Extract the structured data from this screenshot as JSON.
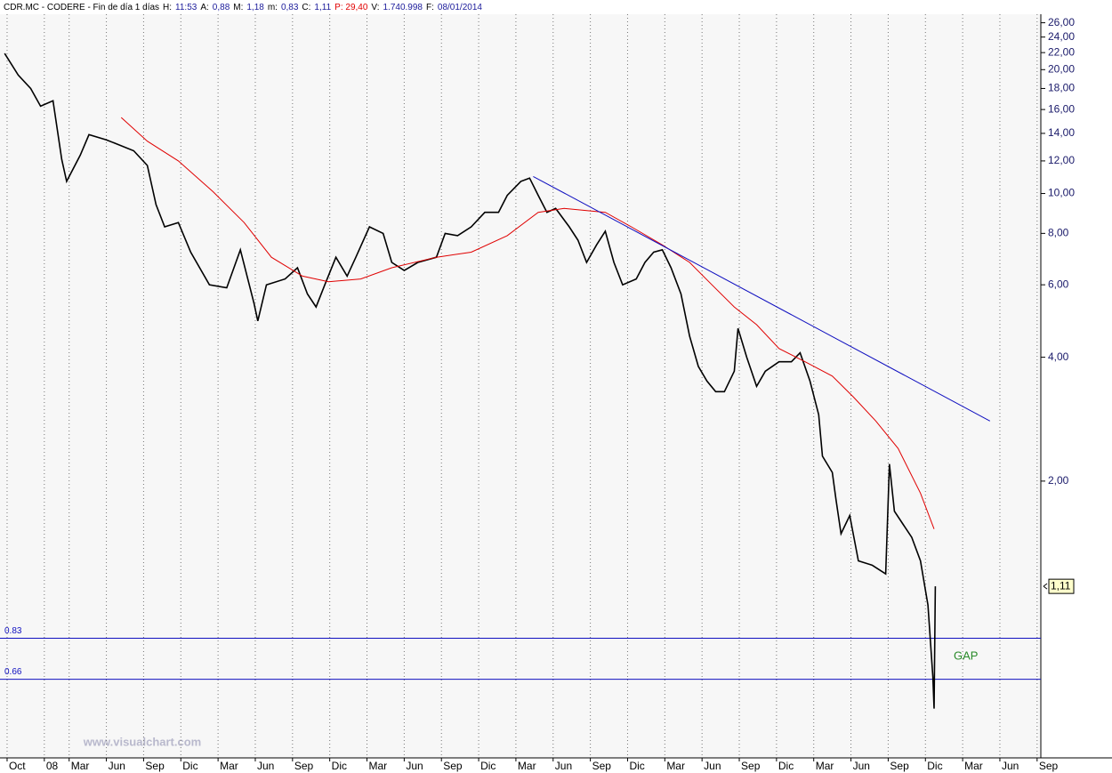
{
  "chart_data": {
    "type": "line",
    "header": [
      {
        "text": "CDR.MC - CODERE - Fin de día 1 días",
        "color": "#000000"
      },
      {
        "text": "H:",
        "color": "#000000"
      },
      {
        "text": "11:53",
        "color": "#1a1a9a"
      },
      {
        "text": "A:",
        "color": "#000000"
      },
      {
        "text": "0,88",
        "color": "#1a1a9a"
      },
      {
        "text": "M:",
        "color": "#000000"
      },
      {
        "text": "1,18",
        "color": "#1a1a9a"
      },
      {
        "text": "m:",
        "color": "#000000"
      },
      {
        "text": "0,83",
        "color": "#1a1a9a"
      },
      {
        "text": "C:",
        "color": "#000000"
      },
      {
        "text": "1,11",
        "color": "#1a1a9a"
      },
      {
        "text": "P: 29,40",
        "color": "#e00000"
      },
      {
        "text": "V:",
        "color": "#000000"
      },
      {
        "text": "1.740.998",
        "color": "#1a1a9a"
      },
      {
        "text": "F:",
        "color": "#000000"
      },
      {
        "text": "08/01/2014",
        "color": "#1a1a9a"
      }
    ],
    "log_scale": true,
    "xlim": [
      -0.5,
      83.3
    ],
    "ylim": [
      0.425,
      27
    ],
    "xticks": [
      {
        "value": 0,
        "label": "Oct"
      },
      {
        "value": 3,
        "label": "08"
      },
      {
        "value": 5,
        "label": "Mar"
      },
      {
        "value": 8,
        "label": "Jun"
      },
      {
        "value": 11,
        "label": "Sep"
      },
      {
        "value": 14,
        "label": "Dic"
      },
      {
        "value": 17,
        "label": "Mar"
      },
      {
        "value": 20,
        "label": "Jun"
      },
      {
        "value": 23,
        "label": "Sep"
      },
      {
        "value": 26,
        "label": "Dic"
      },
      {
        "value": 29,
        "label": "Mar"
      },
      {
        "value": 32,
        "label": "Jun"
      },
      {
        "value": 35,
        "label": "Sep"
      },
      {
        "value": 38,
        "label": "Dic"
      },
      {
        "value": 41,
        "label": "Mar"
      },
      {
        "value": 44,
        "label": "Jun"
      },
      {
        "value": 47,
        "label": "Sep"
      },
      {
        "value": 50,
        "label": "Dic"
      },
      {
        "value": 53,
        "label": "Mar"
      },
      {
        "value": 56,
        "label": "Jun"
      },
      {
        "value": 59,
        "label": "Sep"
      },
      {
        "value": 62,
        "label": "Dic"
      },
      {
        "value": 65,
        "label": "Mar"
      },
      {
        "value": 68,
        "label": "Jun"
      },
      {
        "value": 71,
        "label": "Sep"
      },
      {
        "value": 74,
        "label": "Dic"
      },
      {
        "value": 77,
        "label": "Mar"
      },
      {
        "value": 80,
        "label": "Jun"
      },
      {
        "value": 83,
        "label": "Sep"
      }
    ],
    "yticks": [
      {
        "value": 26,
        "label": "26,00"
      },
      {
        "value": 24,
        "label": "24,00"
      },
      {
        "value": 22,
        "label": "22,00"
      },
      {
        "value": 20,
        "label": "20,00"
      },
      {
        "value": 18,
        "label": "18,00"
      },
      {
        "value": 16,
        "label": "16,00"
      },
      {
        "value": 14,
        "label": "14,00"
      },
      {
        "value": 12,
        "label": "12,00"
      },
      {
        "value": 10,
        "label": "10,00"
      },
      {
        "value": 8,
        "label": "8,00"
      },
      {
        "value": 6,
        "label": "6,00"
      },
      {
        "value": 4,
        "label": "4,00"
      },
      {
        "value": 2,
        "label": "2,00"
      }
    ],
    "last_price": {
      "value": 1.11,
      "label": "1,11"
    },
    "hlines": [
      {
        "value": 0.83,
        "label": "0.83"
      },
      {
        "value": 0.66,
        "label": "0.66"
      }
    ],
    "hline_color": "#1010c0",
    "annotation": {
      "text": "GAP",
      "color": "#2a8a2a"
    },
    "watermark": "www.visualchart.com",
    "grid": true,
    "series": [
      {
        "color": "#000000",
        "x": [
          -0.2,
          0.9,
          1.9,
          2.7,
          3.7,
          4.4,
          4.8,
          5.9,
          6.6,
          8.0,
          10.2,
          11.3,
          12.0,
          12.7,
          13.8,
          14.8,
          16.3,
          17.7,
          18.8,
          19.9,
          20.2,
          20.9,
          22.4,
          23.4,
          24.2,
          24.9,
          25.6,
          26.5,
          27.4,
          28.1,
          29.2,
          30.3,
          31.0,
          32.0,
          33.1,
          34.6,
          35.3,
          36.3,
          37.4,
          38.5,
          39.6,
          40.3,
          41.4,
          42.1,
          42.8,
          43.5,
          44.2,
          45.3,
          46.0,
          46.7,
          47.5,
          48.2,
          48.9,
          49.6,
          50.7,
          51.4,
          52.1,
          52.8,
          53.5,
          54.3,
          55.0,
          55.7,
          56.4,
          57.1,
          57.8,
          58.6,
          58.9,
          59.6,
          60.4,
          61.1,
          62.2,
          63.2,
          63.9,
          64.7,
          65.4,
          65.7,
          66.5,
          66.8,
          67.2,
          67.9,
          68.6,
          69.7,
          70.8,
          71.1,
          71.5,
          72.2,
          72.9,
          73.6,
          74.2,
          74.6,
          74.7,
          74.8
        ],
        "values": [
          21.9,
          19.4,
          18,
          16.3,
          16.8,
          12.1,
          10.7,
          12.4,
          13.9,
          13.5,
          12.7,
          11.7,
          9.4,
          8.3,
          8.5,
          7.2,
          6.0,
          5.9,
          7.3,
          5.4,
          4.9,
          6.0,
          6.2,
          6.6,
          5.7,
          5.3,
          6.0,
          7.0,
          6.3,
          7.0,
          8.3,
          8.0,
          6.8,
          6.5,
          6.8,
          7.0,
          8.0,
          7.9,
          8.3,
          9.0,
          9.0,
          9.9,
          10.7,
          10.9,
          9.9,
          9.0,
          9.2,
          8.3,
          7.7,
          6.8,
          7.5,
          8.1,
          6.8,
          6.0,
          6.2,
          6.8,
          7.2,
          7.3,
          6.6,
          5.7,
          4.5,
          3.8,
          3.5,
          3.3,
          3.3,
          3.7,
          4.7,
          4.0,
          3.4,
          3.7,
          3.9,
          3.9,
          4.1,
          3.5,
          2.9,
          2.3,
          2.1,
          1.8,
          1.49,
          1.65,
          1.28,
          1.25,
          1.19,
          2.2,
          1.69,
          1.57,
          1.46,
          1.28,
          1.0,
          0.67,
          0.56,
          1.11
        ]
      },
      {
        "color": "#e00000",
        "x": [
          9.2,
          11.3,
          13.8,
          16.6,
          19.1,
          21.3,
          23.8,
          25.9,
          28.5,
          31.0,
          34.6,
          37.4,
          40.3,
          42.8,
          44.9,
          48.2,
          50.3,
          52.8,
          55.0,
          56.8,
          58.6,
          60.4,
          62.2,
          64.3,
          66.5,
          68.2,
          70.0,
          71.8,
          73.6,
          74.7
        ],
        "values": [
          15.3,
          13.4,
          12.0,
          10.1,
          8.5,
          7.0,
          6.3,
          6.1,
          6.2,
          6.6,
          7.0,
          7.2,
          7.9,
          9.0,
          9.2,
          9.0,
          8.3,
          7.5,
          6.8,
          6.0,
          5.3,
          4.8,
          4.2,
          3.9,
          3.6,
          3.2,
          2.8,
          2.4,
          1.87,
          1.53
        ]
      },
      {
        "color": "#1010c0",
        "x": [
          42.4,
          79.2
        ],
        "values": [
          11.0,
          2.8
        ]
      }
    ]
  }
}
